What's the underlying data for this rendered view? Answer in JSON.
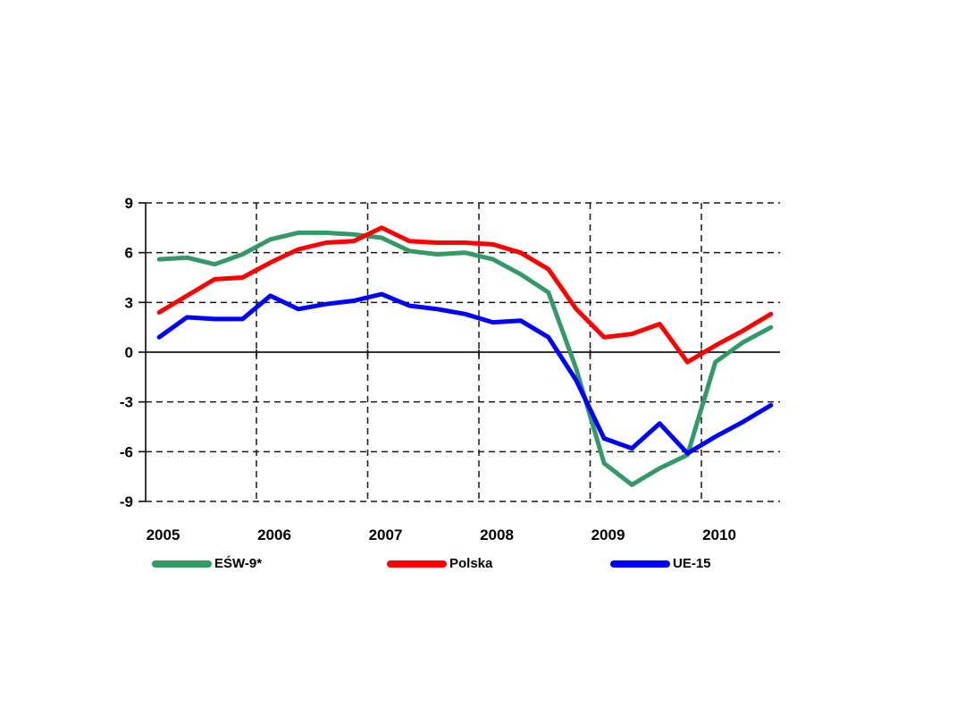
{
  "page": {
    "background": "#ffffff"
  },
  "chart_data": {
    "type": "line",
    "title": "",
    "xlabel": "",
    "ylabel": "",
    "grid": "dashed-black",
    "legend_position": "bottom",
    "x_axis": {
      "years": [
        "2005",
        "2006",
        "2007",
        "2008",
        "2009",
        "2010"
      ]
    },
    "y_axis": {
      "ticks": [
        9,
        6,
        3,
        0,
        -3,
        -6,
        -9
      ],
      "ylim": [
        -9,
        9
      ]
    },
    "x": [
      "2005Q1",
      "2005Q2",
      "2005Q3",
      "2005Q4",
      "2006Q1",
      "2006Q2",
      "2006Q3",
      "2006Q4",
      "2007Q1",
      "2007Q2",
      "2007Q3",
      "2007Q4",
      "2008Q1",
      "2008Q2",
      "2008Q3",
      "2008Q4",
      "2009Q1",
      "2009Q2",
      "2009Q3",
      "2009Q4",
      "2010Q1",
      "2010Q2",
      "2010Q3"
    ],
    "series": [
      {
        "name": "EŚW-9*",
        "color": "#339966",
        "values": [
          5.6,
          5.7,
          5.3,
          5.9,
          6.8,
          7.2,
          7.2,
          7.1,
          6.9,
          6.1,
          5.9,
          6.0,
          5.6,
          4.7,
          3.6,
          -1.0,
          -6.7,
          -8.0,
          -7.0,
          -6.2,
          -0.6,
          0.6,
          1.5
        ]
      },
      {
        "name": "Polska",
        "color": "#ff0000",
        "values": [
          2.4,
          3.4,
          4.4,
          4.5,
          5.4,
          6.2,
          6.6,
          6.7,
          7.5,
          6.7,
          6.6,
          6.6,
          6.5,
          6.0,
          5.0,
          2.6,
          0.9,
          1.1,
          1.7,
          -0.6,
          0.4,
          1.3,
          2.3
        ]
      },
      {
        "name": "UE-15",
        "color": "#0000ff",
        "values": [
          0.9,
          2.1,
          2.0,
          2.0,
          3.4,
          2.6,
          2.9,
          3.1,
          3.5,
          2.8,
          2.6,
          2.3,
          1.8,
          1.9,
          0.9,
          -1.7,
          -5.2,
          -5.8,
          -4.3,
          -6.1,
          -5.1,
          -4.2,
          -3.2
        ]
      }
    ]
  }
}
